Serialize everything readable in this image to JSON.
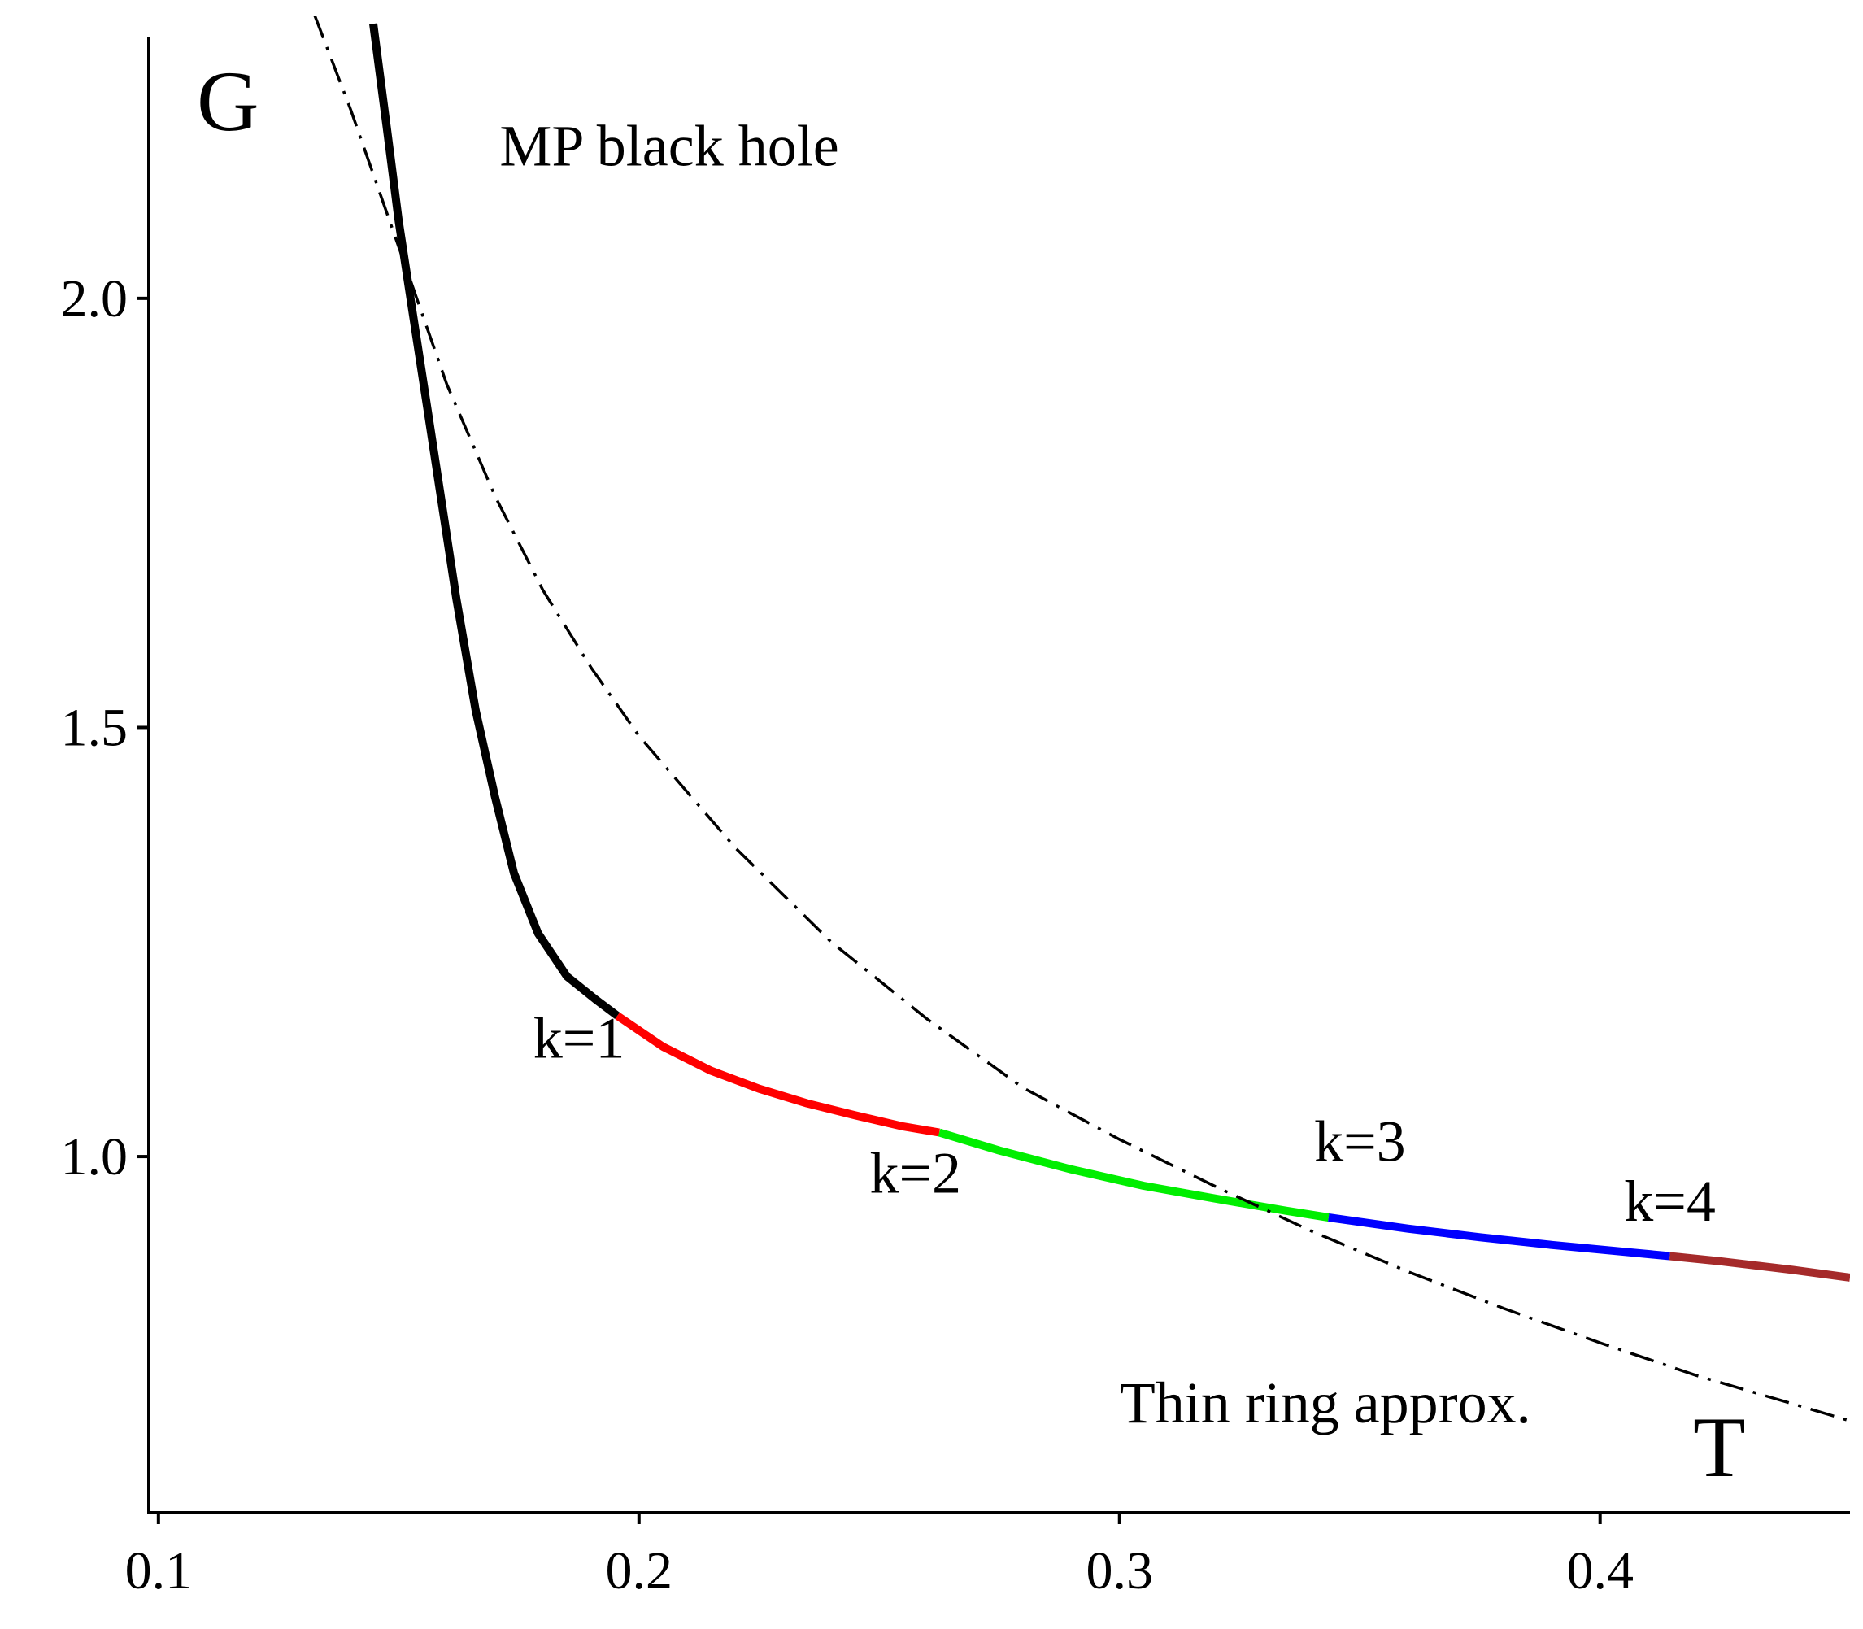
{
  "chart_data": {
    "type": "line",
    "title": "",
    "xlabel": "T",
    "ylabel": "G",
    "xlim": [
      0.098,
      0.452
    ],
    "ylim": [
      0.585,
      2.305
    ],
    "grid": false,
    "x_ticks": [
      0.1,
      0.2,
      0.3,
      0.4
    ],
    "x_tick_labels": [
      "0.1",
      "0.2",
      "0.3",
      "0.4"
    ],
    "y_ticks": [
      1.0,
      1.5,
      2.0
    ],
    "y_tick_labels": [
      "1.0",
      "1.5",
      "2.0"
    ],
    "series": [
      {
        "name": "MP black hole",
        "color": "#000000",
        "style": "solid",
        "points": [
          [
            0.1447,
            2.32
          ],
          [
            0.1475,
            2.2
          ],
          [
            0.15,
            2.09
          ],
          [
            0.153,
            1.98
          ],
          [
            0.156,
            1.87
          ],
          [
            0.159,
            1.76
          ],
          [
            0.162,
            1.65
          ],
          [
            0.166,
            1.52
          ],
          [
            0.17,
            1.42
          ],
          [
            0.174,
            1.33
          ],
          [
            0.179,
            1.26
          ],
          [
            0.185,
            1.21
          ],
          [
            0.191,
            1.183
          ],
          [
            0.1955,
            1.164
          ]
        ]
      },
      {
        "name": "k=1",
        "color": "#ff0000",
        "style": "solid",
        "points": [
          [
            0.1955,
            1.164
          ],
          [
            0.205,
            1.128
          ],
          [
            0.215,
            1.1
          ],
          [
            0.225,
            1.079
          ],
          [
            0.235,
            1.062
          ],
          [
            0.245,
            1.048
          ],
          [
            0.255,
            1.035
          ],
          [
            0.2625,
            1.028
          ]
        ]
      },
      {
        "name": "k=2",
        "color": "#00ee00",
        "style": "solid",
        "points": [
          [
            0.2625,
            1.028
          ],
          [
            0.275,
            1.007
          ],
          [
            0.29,
            0.985
          ],
          [
            0.305,
            0.966
          ],
          [
            0.32,
            0.951
          ],
          [
            0.3345,
            0.937
          ],
          [
            0.3435,
            0.929
          ]
        ]
      },
      {
        "name": "k=3",
        "color": "#0000ff",
        "style": "solid",
        "points": [
          [
            0.3435,
            0.929
          ],
          [
            0.36,
            0.916
          ],
          [
            0.375,
            0.906
          ],
          [
            0.39,
            0.897
          ],
          [
            0.405,
            0.889
          ],
          [
            0.4145,
            0.884
          ]
        ]
      },
      {
        "name": "k=4",
        "color": "#a52a2a",
        "style": "solid",
        "points": [
          [
            0.4145,
            0.884
          ],
          [
            0.425,
            0.878
          ],
          [
            0.44,
            0.868
          ],
          [
            0.452,
            0.859
          ]
        ]
      },
      {
        "name": "Thin ring approx.",
        "color": "#000000",
        "style": "dashdot",
        "points": [
          [
            0.1325,
            2.33
          ],
          [
            0.14,
            2.22
          ],
          [
            0.15,
            2.06
          ],
          [
            0.16,
            1.9
          ],
          [
            0.17,
            1.77
          ],
          [
            0.18,
            1.66
          ],
          [
            0.19,
            1.57
          ],
          [
            0.2,
            1.49
          ],
          [
            0.22,
            1.36
          ],
          [
            0.24,
            1.25
          ],
          [
            0.26,
            1.16
          ],
          [
            0.28,
            1.08
          ],
          [
            0.3,
            1.02
          ],
          [
            0.32,
            0.965
          ],
          [
            0.34,
            0.913
          ],
          [
            0.36,
            0.866
          ],
          [
            0.38,
            0.823
          ],
          [
            0.4,
            0.783
          ],
          [
            0.42,
            0.745
          ],
          [
            0.44,
            0.712
          ],
          [
            0.452,
            0.692
          ]
        ]
      }
    ],
    "annotations": [
      {
        "text": "MP black hole",
        "x": 0.171,
        "y": 2.155
      },
      {
        "text": "k=1",
        "x": 0.178,
        "y": 1.115
      },
      {
        "text": "k=2",
        "x": 0.248,
        "y": 0.958
      },
      {
        "text": "k=3",
        "x": 0.3405,
        "y": 0.995
      },
      {
        "text": "k=4",
        "x": 0.405,
        "y": 0.925
      },
      {
        "text": "Thin ring approx.",
        "x": 0.3,
        "y": 0.69
      }
    ]
  }
}
